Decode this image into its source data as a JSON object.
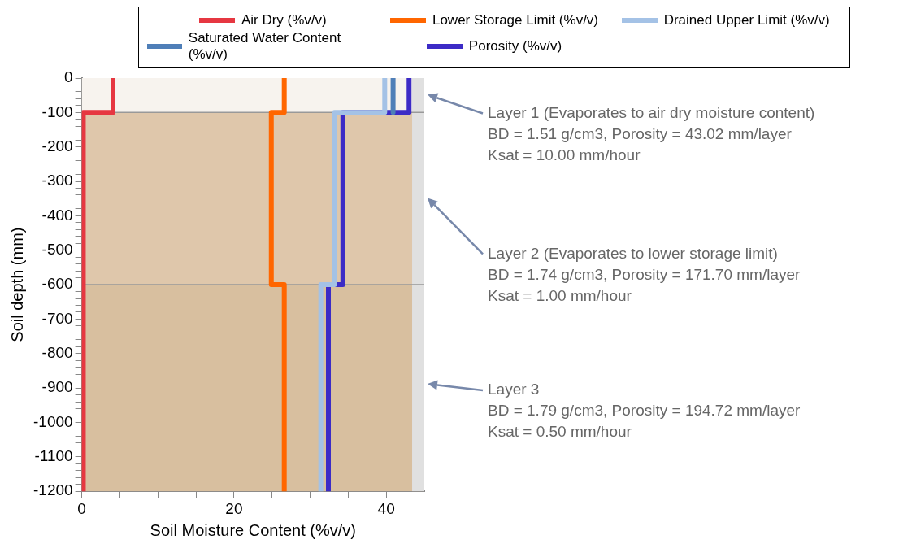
{
  "chart_data": {
    "type": "line",
    "xlabel": "Soil Moisture Content (%v/v)",
    "ylabel": "Soil depth (mm)",
    "xlim": [
      0,
      45
    ],
    "ylim": [
      -1200,
      0
    ],
    "xticks": [
      0,
      {
        "value": 5,
        "label": null
      },
      {
        "value": 10,
        "label": null
      },
      {
        "value": 15,
        "label": null
      },
      20,
      {
        "value": 25,
        "label": null
      },
      {
        "value": 30,
        "label": null
      },
      {
        "value": 35,
        "label": null
      },
      40
    ],
    "yticks": [
      -1200,
      {
        "value": -1180,
        "label": null
      },
      {
        "value": -1160,
        "label": null
      },
      {
        "value": -1140,
        "label": null
      },
      {
        "value": -1120,
        "label": null
      },
      -1100,
      {
        "value": -1080,
        "label": null
      },
      {
        "value": -1060,
        "label": null
      },
      {
        "value": -1040,
        "label": null
      },
      {
        "value": -1020,
        "label": null
      },
      -1000,
      {
        "value": -980,
        "label": null
      },
      {
        "value": -960,
        "label": null
      },
      {
        "value": -940,
        "label": null
      },
      {
        "value": -920,
        "label": null
      },
      -900,
      {
        "value": -880,
        "label": null
      },
      {
        "value": -860,
        "label": null
      },
      {
        "value": -840,
        "label": null
      },
      {
        "value": -820,
        "label": null
      },
      -800,
      {
        "value": -780,
        "label": null
      },
      {
        "value": -760,
        "label": null
      },
      {
        "value": -740,
        "label": null
      },
      {
        "value": -720,
        "label": null
      },
      -700,
      {
        "value": -680,
        "label": null
      },
      {
        "value": -660,
        "label": null
      },
      {
        "value": -640,
        "label": null
      },
      {
        "value": -620,
        "label": null
      },
      -600,
      {
        "value": -580,
        "label": null
      },
      {
        "value": -560,
        "label": null
      },
      {
        "value": -540,
        "label": null
      },
      {
        "value": -520,
        "label": null
      },
      -500,
      {
        "value": -480,
        "label": null
      },
      {
        "value": -460,
        "label": null
      },
      {
        "value": -440,
        "label": null
      },
      {
        "value": -420,
        "label": null
      },
      -400,
      {
        "value": -380,
        "label": null
      },
      {
        "value": -360,
        "label": null
      },
      {
        "value": -340,
        "label": null
      },
      {
        "value": -320,
        "label": null
      },
      -300,
      {
        "value": -280,
        "label": null
      },
      {
        "value": -260,
        "label": null
      },
      {
        "value": -240,
        "label": null
      },
      {
        "value": -220,
        "label": null
      },
      -200,
      {
        "value": -180,
        "label": null
      },
      {
        "value": -160,
        "label": null
      },
      {
        "value": -140,
        "label": null
      },
      {
        "value": -120,
        "label": null
      },
      -100,
      {
        "value": -80,
        "label": null
      },
      {
        "value": -60,
        "label": null
      },
      {
        "value": -40,
        "label": null
      },
      {
        "value": -20,
        "label": null
      },
      0
    ],
    "legend": "top",
    "marker": "none",
    "line_style": "solid",
    "series": [
      {
        "name": "Air Dry (%v/v)",
        "color": "#e63741",
        "x": [
          4.1,
          4.1,
          0.2,
          0.2,
          0.2,
          0.2
        ],
        "values": [
          0,
          -100,
          -100,
          -600,
          -600,
          -1200
        ]
      },
      {
        "name": "Lower Storage Limit (%v/v)",
        "color": "#ff6600",
        "x": [
          26.6,
          26.6,
          24.9,
          24.9,
          26.6,
          26.6
        ],
        "values": [
          0,
          -100,
          -100,
          -600,
          -600,
          -1200
        ]
      },
      {
        "name": "Drained Upper Limit (%v/v)",
        "color": "#a4c2e6",
        "x": [
          39.8,
          39.8,
          33.2,
          33.2,
          31.4,
          31.4
        ],
        "values": [
          0,
          -100,
          -100,
          -600,
          -600,
          -1200
        ]
      },
      {
        "name": "Saturated Water Content (%v/v)",
        "color": "#4f7fb8",
        "x": [
          40.9,
          40.9
        ],
        "values": [
          0,
          -100
        ]
      },
      {
        "name": "Porosity (%v/v)",
        "color": "#3c2bc6",
        "x": [
          43.0,
          43.0,
          34.3,
          34.3,
          32.4,
          32.4
        ],
        "values": [
          0,
          -100,
          -100,
          -600,
          -600,
          -1200
        ]
      }
    ],
    "bands": [
      {
        "axis": "y",
        "from": 0,
        "to": -100,
        "color": "#f7f3ee"
      },
      {
        "axis": "y",
        "from": -100,
        "to": -600,
        "color": "#dfc7ab"
      },
      {
        "axis": "y",
        "from": -600,
        "to": -1200,
        "color": "#d8bf9f"
      },
      {
        "axis": "x",
        "from": 43.4,
        "to": 45,
        "color": "#e0e0e0"
      }
    ],
    "ref_lines": [
      {
        "axis": "y",
        "value": -100,
        "color": "#999999"
      },
      {
        "axis": "y",
        "value": -600,
        "color": "#999999"
      }
    ],
    "annotations": [
      "Layer 1 (Evaporates to air dry moisture content)\nBD = 1.51 g/cm3, Porosity = 43.02 mm/layer\nKsat = 10.00 mm/hour",
      "Layer 2 (Evaporates to lower storage limit)\nBD = 1.74 g/cm3, Porosity = 171.70 mm/layer\nKsat = 1.00 mm/hour",
      "Layer 3\nBD = 1.79 g/cm3, Porosity = 194.72 mm/layer\nKsat = 0.50 mm/hour"
    ]
  }
}
